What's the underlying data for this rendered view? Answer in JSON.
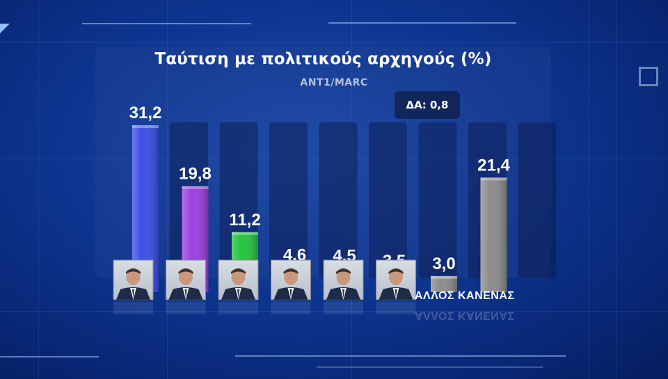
{
  "source": "ANT1/MARC",
  "note": "ΔΑ: 0,8",
  "chart_data": {
    "type": "bar",
    "title": "Ταύτιση με πολιτικούς αρχηγούς (%)",
    "categories": [
      "leader-1",
      "leader-2",
      "leader-3",
      "leader-4",
      "leader-5",
      "leader-6",
      "ΑΛΛΟΣ",
      "ΚΑΝΕΝΑΣ"
    ],
    "category_labels": [
      "",
      "",
      "",
      "",
      "",
      "",
      "ΑΛΛΟΣ",
      "ΚΑΝΕΝΑΣ"
    ],
    "values": [
      31.2,
      19.8,
      11.2,
      4.6,
      4.5,
      3.5,
      3.0,
      21.4
    ],
    "value_labels": [
      "31,2",
      "19,8",
      "11,2",
      "4,6",
      "4,5",
      "3,5",
      "3,0",
      "21,4"
    ],
    "colors": [
      "#3c4fe6",
      "#9c3fe0",
      "#26c43e",
      "#f26a28",
      "#3fc6e6",
      "#f08a3a",
      "#8c8c8c",
      "#8c8c8c"
    ],
    "ylim": [
      0,
      31.2
    ],
    "grid": false,
    "legend": "none"
  },
  "categories_display": {
    "other": "ΑΛΛΟΣ",
    "none": "ΚΑΝΕΝΑΣ"
  }
}
